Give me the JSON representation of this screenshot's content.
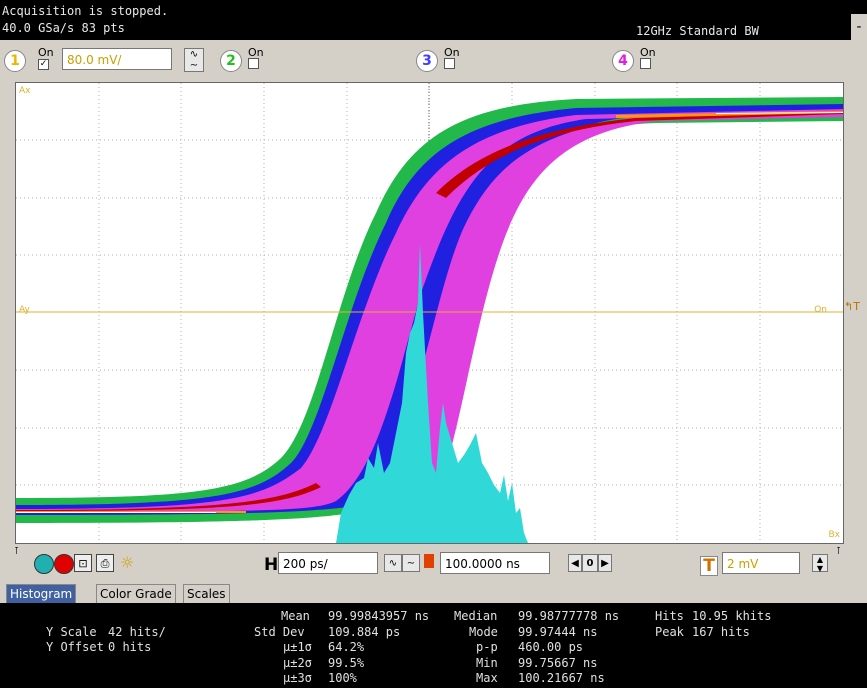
{
  "status": {
    "line1": "Acquisition is stopped.",
    "line2": "40.0 GSa/s   83 pts",
    "bandwidth": "12GHz Standard BW",
    "minimize_label": "-"
  },
  "channels": [
    {
      "number": "1",
      "on_label": "On",
      "checked": true,
      "color": "#e8b800"
    },
    {
      "number": "2",
      "on_label": "On",
      "checked": false,
      "color": "#20c020"
    },
    {
      "number": "3",
      "on_label": "On",
      "checked": false,
      "color": "#4040ff"
    },
    {
      "number": "4",
      "on_label": "On",
      "checked": false,
      "color": "#e020e0"
    }
  ],
  "channel1": {
    "scale": "80.0 mV/"
  },
  "display": {
    "labels": {
      "ax": "Ax",
      "bx": "Bx",
      "ay": "Ay",
      "on_marker": "On"
    },
    "colors": {
      "green": "#22b84a",
      "blue": "#2020e0",
      "magenta": "#e040e0",
      "red": "#c00000",
      "orange": "#ff9a00",
      "histogram": "#30d8d8",
      "marker": "#e0b030"
    }
  },
  "controls": {
    "horizontal_label": "H",
    "horizontal_scale": "200 ps/",
    "position": "100.0000 ns",
    "trigger_label": "T",
    "trigger_level": "2 mV",
    "zero_label": "0"
  },
  "tabs": [
    {
      "label": "Histogram",
      "active": true
    },
    {
      "label": "Color Grade",
      "active": false
    },
    {
      "label": "Scales",
      "active": false
    }
  ],
  "results": {
    "y_scale_label": "Y Scale",
    "y_scale_value": "42 hits/",
    "y_offset_label": "Y Offset",
    "y_offset_value": "0 hits",
    "mean_label": "Mean",
    "mean_value": "99.99843957 ns",
    "stddev_label": "Std Dev",
    "stddev_value": "109.884 ps",
    "s1_label": "μ±1σ",
    "s1_value": "64.2%",
    "s2_label": "μ±2σ",
    "s2_value": "99.5%",
    "s3_label": "μ±3σ",
    "s3_value": "100%",
    "median_label": "Median",
    "median_value": "99.98777778 ns",
    "mode_label": "Mode",
    "mode_value": "99.97444 ns",
    "pp_label": "p-p",
    "pp_value": "460.00 ps",
    "min_label": "Min",
    "min_value": "99.75667 ns",
    "max_label": "Max",
    "max_value": "100.21667 ns",
    "hits_label": "Hits",
    "hits_value": "10.95 khits",
    "peak_label": "Peak",
    "peak_value": "167 hits"
  },
  "icons": [
    "grid-toggle-icon",
    "run-stop-icon",
    "clear-display-icon",
    "print-icon",
    "autoscale-sun-icon",
    "invert-icon",
    "trigger-t-icon",
    "arrow-left-icon",
    "arrow-right-icon",
    "spin-up-down-icon"
  ]
}
